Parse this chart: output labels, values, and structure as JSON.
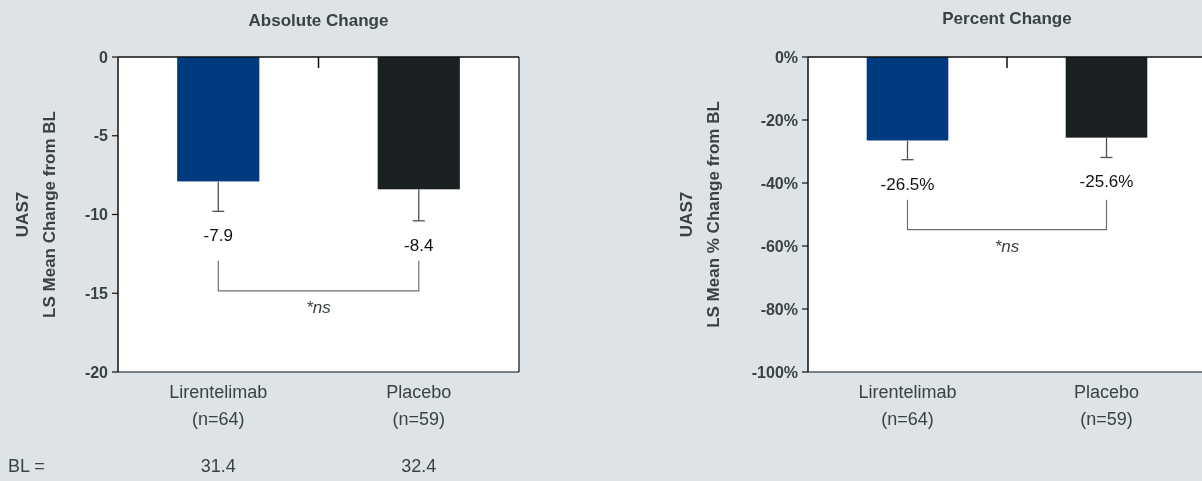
{
  "chart_data": [
    {
      "type": "bar",
      "title": "Absolute Change",
      "ylabel": "UAS7\nLS Mean Change from BL",
      "categories": [
        "Lirentelimab\n(n=64)",
        "Placebo\n(n=59)"
      ],
      "values": [
        -7.9,
        -8.4
      ],
      "colors": [
        "#003b7f",
        "#1a1f21"
      ],
      "errors": [
        [
          -9.8,
          -7.9
        ],
        [
          -10.4,
          -8.4
        ]
      ],
      "value_labels": [
        "-7.9",
        "-8.4"
      ],
      "ylim": [
        -20,
        0
      ],
      "yticks": [
        -20,
        -15,
        -10,
        -5,
        0
      ],
      "grid": false,
      "annotations": [
        "*ns",
        "BL =",
        "31.4",
        "32.4"
      ]
    },
    {
      "type": "bar",
      "title": "Percent Change",
      "ylabel": "UAS7\nLS Mean % Change from BL",
      "categories": [
        "Lirentelimab\n(n=64)",
        "Placebo\n(n=59)"
      ],
      "values": [
        -26.5,
        -25.6
      ],
      "colors": [
        "#003b7f",
        "#1a1f21"
      ],
      "errors": [
        [
          -32.6,
          -26.5
        ],
        [
          -31.9,
          -25.6
        ]
      ],
      "value_labels": [
        "-26.5%",
        "-25.6%"
      ],
      "ylim": [
        -100,
        0
      ],
      "yticks": [
        {
          "value": -100,
          "label": "-100%"
        },
        {
          "value": -80,
          "label": "-80%"
        },
        {
          "value": -60,
          "label": "-60%"
        },
        {
          "value": -40,
          "label": "-40%"
        },
        {
          "value": -20,
          "label": "-20%"
        },
        {
          "value": 0,
          "label": "0%"
        }
      ],
      "grid": false,
      "annotations": [
        "*ns"
      ]
    }
  ]
}
